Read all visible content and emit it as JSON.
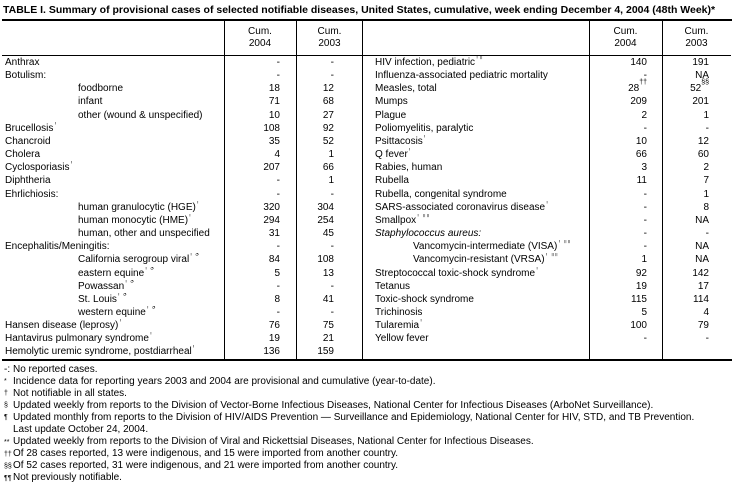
{
  "title": "TABLE I. Summary of provisional cases of selected notifiable diseases, United States, cumulative, week ending December 4, 2004 (48th Week)*",
  "columns": {
    "cum_label": "Cum.",
    "year_2004": "2004",
    "year_2003": "2003"
  },
  "left_table": {
    "rows": [
      {
        "label": "Anthrax",
        "indent": 0,
        "cum2004": "-",
        "cum2003": "-"
      },
      {
        "label": "Botulism:",
        "indent": 0,
        "cum2004": "-",
        "cum2003": "-"
      },
      {
        "label": "foodborne",
        "indent": 1,
        "cum2004": "18",
        "cum2003": "12"
      },
      {
        "label": "infant",
        "indent": 1,
        "cum2004": "71",
        "cum2003": "68"
      },
      {
        "label": "other (wound & unspecified)",
        "indent": 1,
        "cum2004": "10",
        "cum2003": "27"
      },
      {
        "label": "Brucellosis†",
        "indent": 0,
        "cum2004": "108",
        "cum2003": "92"
      },
      {
        "label": "Chancroid",
        "indent": 0,
        "cum2004": "35",
        "cum2003": "52"
      },
      {
        "label": "Cholera",
        "indent": 0,
        "cum2004": "4",
        "cum2003": "1"
      },
      {
        "label": "Cyclosporiasis†",
        "indent": 0,
        "cum2004": "207",
        "cum2003": "66"
      },
      {
        "label": "Diphtheria",
        "indent": 0,
        "cum2004": "-",
        "cum2003": "1"
      },
      {
        "label": "Ehrlichiosis:",
        "indent": 0,
        "cum2004": "-",
        "cum2003": "-"
      },
      {
        "label": "human granulocytic (HGE)†",
        "indent": 1,
        "cum2004": "320",
        "cum2003": "304"
      },
      {
        "label": "human monocytic (HME)†",
        "indent": 1,
        "cum2004": "294",
        "cum2003": "254"
      },
      {
        "label": "human, other and unspecified",
        "indent": 1,
        "cum2004": "31",
        "cum2003": "45"
      },
      {
        "label": "Encephalitis/Meningitis:",
        "indent": 0,
        "cum2004": "-",
        "cum2003": "-"
      },
      {
        "label": "California serogroup viral† §",
        "indent": 1,
        "cum2004": "84",
        "cum2003": "108"
      },
      {
        "label": "eastern equine† §",
        "indent": 1,
        "cum2004": "5",
        "cum2003": "13"
      },
      {
        "label": "Powassan† §",
        "indent": 1,
        "cum2004": "-",
        "cum2003": "-"
      },
      {
        "label": "St. Louis† §",
        "indent": 1,
        "cum2004": "8",
        "cum2003": "41"
      },
      {
        "label": "western equine† §",
        "indent": 1,
        "cum2004": "-",
        "cum2003": "-"
      },
      {
        "label": "Hansen disease (leprosy)†",
        "indent": 0,
        "cum2004": "76",
        "cum2003": "75"
      },
      {
        "label": "Hantavirus pulmonary syndrome†",
        "indent": 0,
        "cum2004": "19",
        "cum2003": "21"
      },
      {
        "label": "Hemolytic uremic syndrome, postdiarrheal†",
        "indent": 0,
        "cum2004": "136",
        "cum2003": "159"
      }
    ]
  },
  "right_table": {
    "rows": [
      {
        "label": "HIV infection, pediatric†¶",
        "indent": 0,
        "cum2004": "140",
        "cum2003": "191"
      },
      {
        "label": "Influenza-associated pediatric mortality**",
        "indent": 0,
        "cum2004": "-",
        "cum2003": "NA"
      },
      {
        "label": "Measles, total",
        "indent": 0,
        "cum2004": "28††",
        "cum2003": "52§§"
      },
      {
        "label": "Mumps",
        "indent": 0,
        "cum2004": "209",
        "cum2003": "201"
      },
      {
        "label": "Plague",
        "indent": 0,
        "cum2004": "2",
        "cum2003": "1"
      },
      {
        "label": "Poliomyelitis, paralytic",
        "indent": 0,
        "cum2004": "-",
        "cum2003": "-"
      },
      {
        "label": "Psittacosis†",
        "indent": 0,
        "cum2004": "10",
        "cum2003": "12"
      },
      {
        "label": "Q fever†",
        "indent": 0,
        "cum2004": "66",
        "cum2003": "60"
      },
      {
        "label": "Rabies, human",
        "indent": 0,
        "cum2004": "3",
        "cum2003": "2"
      },
      {
        "label": "Rubella",
        "indent": 0,
        "cum2004": "11",
        "cum2003": "7"
      },
      {
        "label": "Rubella, congenital syndrome",
        "indent": 0,
        "cum2004": "-",
        "cum2003": "1"
      },
      {
        "label": "SARS-associated coronavirus disease† **",
        "indent": 0,
        "cum2004": "-",
        "cum2003": "8"
      },
      {
        "label": "Smallpox† ¶¶",
        "indent": 0,
        "cum2004": "-",
        "cum2003": "NA"
      },
      {
        "label": "Staphylococcus aureus:",
        "indent": 0,
        "italic": true,
        "cum2004": "-",
        "cum2003": "-"
      },
      {
        "label": "Vancomycin-intermediate (VISA)† ¶¶",
        "indent": 1,
        "cum2004": "-",
        "cum2003": "NA"
      },
      {
        "label": "Vancomycin-resistant (VRSA)† ¶¶",
        "indent": 1,
        "cum2004": "1",
        "cum2003": "NA"
      },
      {
        "label": "Streptococcal toxic-shock syndrome†",
        "indent": 0,
        "cum2004": "92",
        "cum2003": "142"
      },
      {
        "label": "Tetanus",
        "indent": 0,
        "cum2004": "19",
        "cum2003": "17"
      },
      {
        "label": "Toxic-shock syndrome",
        "indent": 0,
        "cum2004": "115",
        "cum2003": "114"
      },
      {
        "label": "Trichinosis",
        "indent": 0,
        "cum2004": "5",
        "cum2003": "4"
      },
      {
        "label": "Tularemia†",
        "indent": 0,
        "cum2004": "100",
        "cum2003": "79"
      },
      {
        "label": "Yellow fever",
        "indent": 0,
        "cum2004": "-",
        "cum2003": "-"
      }
    ]
  },
  "footnotes": [
    {
      "marker": "-:",
      "text": "No reported cases."
    },
    {
      "marker": "*",
      "text": "Incidence data for reporting years 2003 and 2004 are provisional and cumulative (year-to-date)."
    },
    {
      "marker": "†",
      "text": "Not notifiable in all states."
    },
    {
      "marker": "§",
      "text": "Updated weekly from reports to the Division of Vector-Borne Infectious Diseases, National Center for Infectious Diseases (ArboNet Surveillance)."
    },
    {
      "marker": "¶",
      "text": "Updated monthly from reports to the Division of HIV/AIDS Prevention — Surveillance and Epidemiology, National Center for HIV, STD, and TB Prevention.",
      "text2": "Last update October 24, 2004."
    },
    {
      "marker": "**",
      "text": "Updated weekly from reports to the Division of Viral and Rickettsial Diseases, National Center for Infectious Diseases."
    },
    {
      "marker": "††",
      "text": "Of 28 cases reported, 13 were indigenous, and 15 were imported from another country."
    },
    {
      "marker": "§§",
      "text": "Of 52 cases reported, 31 were indigenous, and 21 were imported from another country."
    },
    {
      "marker": "¶¶",
      "text": "Not previously notifiable."
    }
  ],
  "colors": {
    "text": "#000000",
    "background": "#ffffff",
    "border": "#000000"
  }
}
